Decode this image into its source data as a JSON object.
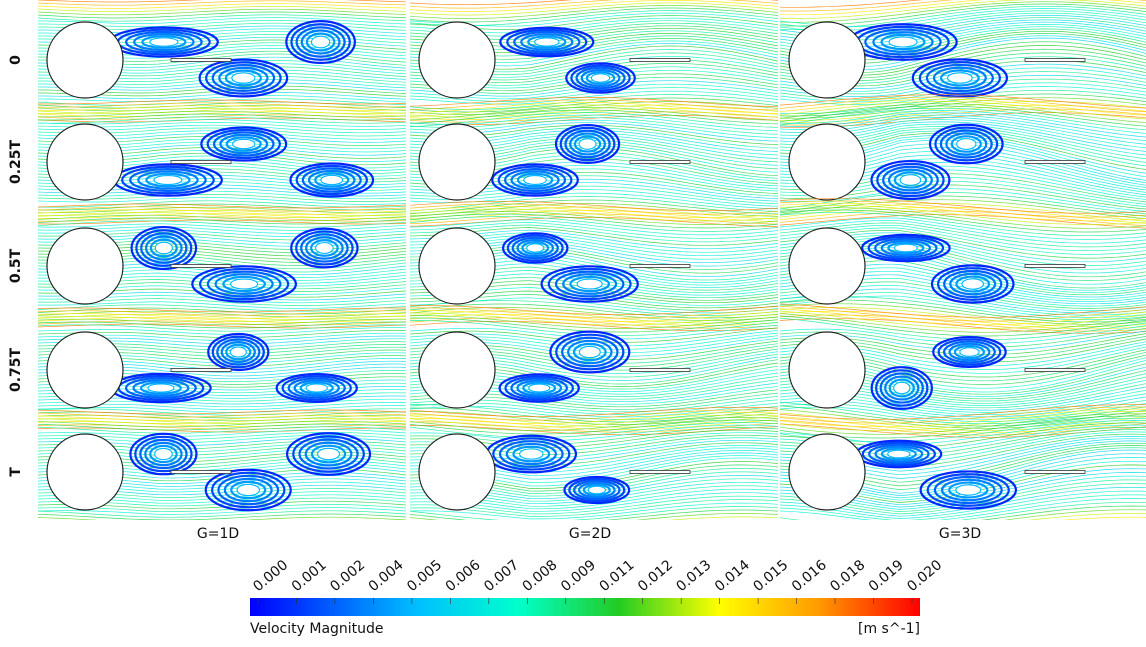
{
  "row_labels": [
    "0",
    "0.25T",
    "0.5T",
    "0.75T",
    "T"
  ],
  "column_labels": [
    "G=1D",
    "G=2D",
    "G=3D"
  ],
  "colorbar": {
    "title": "Velocity Magnitude",
    "unit": "[m s^-1]",
    "ticks": [
      "0.000",
      "0.001",
      "0.002",
      "0.004",
      "0.005",
      "0.006",
      "0.007",
      "0.008",
      "0.009",
      "0.011",
      "0.012",
      "0.013",
      "0.014",
      "0.015",
      "0.016",
      "0.018",
      "0.019",
      "0.020"
    ]
  }
}
